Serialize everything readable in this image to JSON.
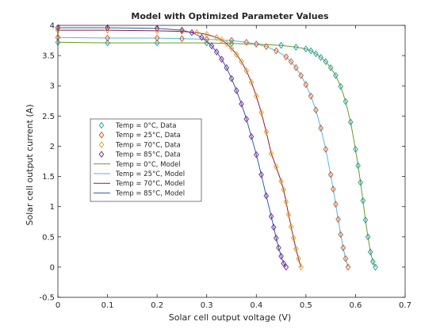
{
  "chart_data": {
    "type": "line",
    "title": "Model with Optimized Parameter Values",
    "xlabel": "Solar cell output voltage (V)",
    "ylabel": "Solar cell output current (A)",
    "xlim": [
      0,
      0.7
    ],
    "ylim": [
      -0.5,
      4
    ],
    "xticks": [
      "0",
      "0.1",
      "0.2",
      "0.3",
      "0.4",
      "0.5",
      "0.6",
      "0.7"
    ],
    "yticks": [
      "-0.5",
      "0",
      "0.5",
      "1",
      "1.5",
      "2",
      "2.5",
      "3",
      "3.5",
      "4"
    ],
    "grid": false,
    "legend_position": "middle-left",
    "series": [
      {
        "name": "Temp = 0°C, Data",
        "kind": "data",
        "marker": "diamond",
        "color": "#2aa1a6",
        "x": [
          0,
          0.1,
          0.2,
          0.3,
          0.35,
          0.4,
          0.45,
          0.48,
          0.5,
          0.51,
          0.52,
          0.53,
          0.54,
          0.55,
          0.56,
          0.57,
          0.58,
          0.59,
          0.6,
          0.605,
          0.61,
          0.615,
          0.62,
          0.625,
          0.63,
          0.635,
          0.64
        ],
        "y": [
          3.72,
          3.71,
          3.71,
          3.71,
          3.7,
          3.69,
          3.67,
          3.64,
          3.61,
          3.58,
          3.53,
          3.47,
          3.4,
          3.3,
          3.17,
          2.99,
          2.74,
          2.4,
          1.95,
          1.68,
          1.4,
          1.1,
          0.78,
          0.5,
          0.25,
          0.09,
          0.0
        ]
      },
      {
        "name": "Temp = 25°C, Data",
        "kind": "data",
        "marker": "diamond",
        "color": "#d45b2a",
        "x": [
          0,
          0.1,
          0.2,
          0.25,
          0.3,
          0.35,
          0.38,
          0.4,
          0.42,
          0.44,
          0.46,
          0.47,
          0.48,
          0.49,
          0.5,
          0.51,
          0.52,
          0.53,
          0.54,
          0.55,
          0.555,
          0.56,
          0.565,
          0.57,
          0.575,
          0.58,
          0.585
        ],
        "y": [
          3.8,
          3.79,
          3.79,
          3.78,
          3.77,
          3.75,
          3.72,
          3.69,
          3.65,
          3.58,
          3.48,
          3.4,
          3.3,
          3.17,
          3.02,
          2.83,
          2.6,
          2.3,
          1.95,
          1.53,
          1.29,
          1.04,
          0.79,
          0.54,
          0.32,
          0.14,
          0.0
        ]
      },
      {
        "name": "Temp = 70°C, Data",
        "kind": "data",
        "marker": "diamond",
        "color": "#e8a52d",
        "x": [
          0,
          0.1,
          0.2,
          0.25,
          0.28,
          0.3,
          0.32,
          0.33,
          0.34,
          0.35,
          0.36,
          0.37,
          0.38,
          0.39,
          0.4,
          0.41,
          0.42,
          0.43,
          0.44,
          0.45,
          0.455,
          0.46,
          0.465,
          0.47,
          0.475,
          0.48,
          0.485,
          0.49
        ],
        "y": [
          3.92,
          3.92,
          3.91,
          3.9,
          3.88,
          3.85,
          3.8,
          3.76,
          3.7,
          3.62,
          3.52,
          3.4,
          3.25,
          3.06,
          2.83,
          2.56,
          2.24,
          1.88,
          1.66,
          1.42,
          1.28,
          1.08,
          0.87,
          0.67,
          0.48,
          0.3,
          0.14,
          0.0
        ]
      },
      {
        "name": "Temp = 85°C, Data",
        "kind": "data",
        "marker": "diamond",
        "color": "#7e3396",
        "x": [
          0,
          0.1,
          0.2,
          0.25,
          0.27,
          0.29,
          0.31,
          0.32,
          0.33,
          0.34,
          0.35,
          0.36,
          0.37,
          0.38,
          0.39,
          0.4,
          0.41,
          0.42,
          0.43,
          0.435,
          0.44,
          0.445,
          0.45,
          0.455,
          0.46
        ],
        "y": [
          3.96,
          3.96,
          3.95,
          3.92,
          3.88,
          3.8,
          3.66,
          3.56,
          3.44,
          3.3,
          3.12,
          2.92,
          2.7,
          2.45,
          2.16,
          1.86,
          1.53,
          1.18,
          0.84,
          0.66,
          0.48,
          0.32,
          0.18,
          0.06,
          0.0
        ]
      },
      {
        "name": "Temp = 0°C, Model",
        "kind": "model",
        "color": "#6a9a22",
        "x": [
          0,
          0.1,
          0.2,
          0.3,
          0.35,
          0.4,
          0.45,
          0.48,
          0.5,
          0.51,
          0.52,
          0.53,
          0.54,
          0.55,
          0.56,
          0.57,
          0.58,
          0.59,
          0.6,
          0.605,
          0.61,
          0.615,
          0.62,
          0.625,
          0.63,
          0.635,
          0.64
        ],
        "y": [
          3.72,
          3.71,
          3.71,
          3.71,
          3.7,
          3.69,
          3.67,
          3.64,
          3.61,
          3.58,
          3.53,
          3.47,
          3.4,
          3.3,
          3.17,
          2.99,
          2.74,
          2.4,
          1.95,
          1.68,
          1.4,
          1.1,
          0.78,
          0.5,
          0.25,
          0.09,
          0.0
        ]
      },
      {
        "name": "Temp = 25°C, Model",
        "kind": "model",
        "color": "#4fb8e0",
        "x": [
          0,
          0.1,
          0.2,
          0.25,
          0.3,
          0.35,
          0.38,
          0.4,
          0.42,
          0.44,
          0.46,
          0.47,
          0.48,
          0.49,
          0.5,
          0.51,
          0.52,
          0.53,
          0.54,
          0.55,
          0.555,
          0.56,
          0.565,
          0.57,
          0.575,
          0.58,
          0.585
        ],
        "y": [
          3.8,
          3.79,
          3.79,
          3.78,
          3.77,
          3.75,
          3.72,
          3.69,
          3.65,
          3.58,
          3.48,
          3.4,
          3.3,
          3.17,
          3.02,
          2.83,
          2.6,
          2.3,
          1.95,
          1.53,
          1.29,
          1.04,
          0.79,
          0.54,
          0.32,
          0.14,
          0.0
        ]
      },
      {
        "name": "Temp = 70°C, Model",
        "kind": "model",
        "color": "#8b1a3a",
        "x": [
          0,
          0.1,
          0.2,
          0.25,
          0.28,
          0.3,
          0.32,
          0.33,
          0.34,
          0.35,
          0.36,
          0.37,
          0.38,
          0.39,
          0.4,
          0.41,
          0.42,
          0.43,
          0.44,
          0.45,
          0.455,
          0.46,
          0.465,
          0.47,
          0.475,
          0.48,
          0.485,
          0.49
        ],
        "y": [
          3.92,
          3.92,
          3.91,
          3.9,
          3.88,
          3.85,
          3.8,
          3.76,
          3.7,
          3.62,
          3.52,
          3.4,
          3.25,
          3.06,
          2.83,
          2.56,
          2.24,
          1.88,
          1.66,
          1.42,
          1.28,
          1.08,
          0.87,
          0.67,
          0.48,
          0.3,
          0.14,
          0.0
        ]
      },
      {
        "name": "Temp = 85°C, Model",
        "kind": "model",
        "color": "#2a5ca8",
        "x": [
          0,
          0.1,
          0.2,
          0.25,
          0.27,
          0.29,
          0.31,
          0.32,
          0.33,
          0.34,
          0.35,
          0.36,
          0.37,
          0.38,
          0.39,
          0.4,
          0.41,
          0.42,
          0.43,
          0.435,
          0.44,
          0.445,
          0.45,
          0.455,
          0.46
        ],
        "y": [
          3.96,
          3.96,
          3.95,
          3.92,
          3.88,
          3.8,
          3.66,
          3.56,
          3.44,
          3.3,
          3.12,
          2.92,
          2.7,
          2.45,
          2.16,
          1.86,
          1.53,
          1.18,
          0.84,
          0.66,
          0.48,
          0.32,
          0.18,
          0.06,
          0.0
        ]
      }
    ]
  }
}
